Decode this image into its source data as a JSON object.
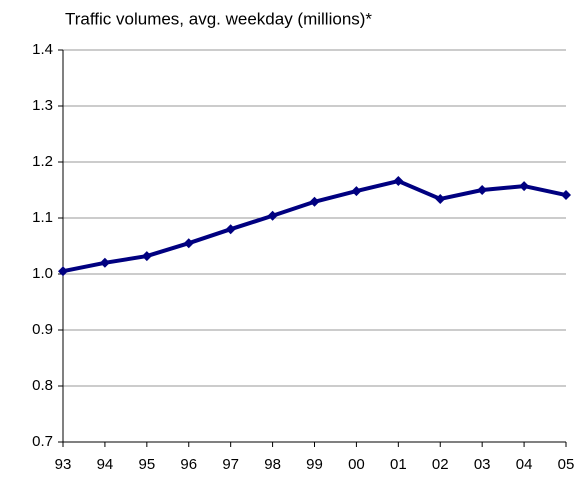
{
  "chart_data": {
    "type": "line",
    "title": "Traffic volumes, avg. weekday (millions)*",
    "categories": [
      "93",
      "94",
      "95",
      "96",
      "97",
      "98",
      "99",
      "00",
      "01",
      "02",
      "03",
      "04",
      "05"
    ],
    "values": [
      1.005,
      1.02,
      1.032,
      1.055,
      1.08,
      1.104,
      1.129,
      1.148,
      1.166,
      1.134,
      1.15,
      1.157,
      1.141
    ],
    "color": "#000080",
    "ylim": [
      0.7,
      1.4
    ],
    "yticks": [
      0.7,
      0.8,
      0.9,
      {
        "value": 1,
        "label": "1.0"
      },
      1.1,
      1.2,
      1.3,
      1.4
    ],
    "grid": true
  }
}
